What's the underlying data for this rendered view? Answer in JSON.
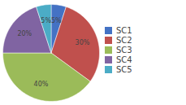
{
  "chart_data": {
    "type": "pie",
    "categories": [
      "SC1",
      "SC2",
      "SC3",
      "SC4",
      "SC5"
    ],
    "values": [
      5,
      30,
      40,
      20,
      5
    ],
    "value_labels": [
      "5%",
      "30%",
      "40%",
      "20%",
      "5%"
    ],
    "colors": [
      "#4472C4",
      "#C0504D",
      "#9BBB59",
      "#8064A2",
      "#4BACC6"
    ],
    "data_labels": true,
    "legend": "right"
  }
}
